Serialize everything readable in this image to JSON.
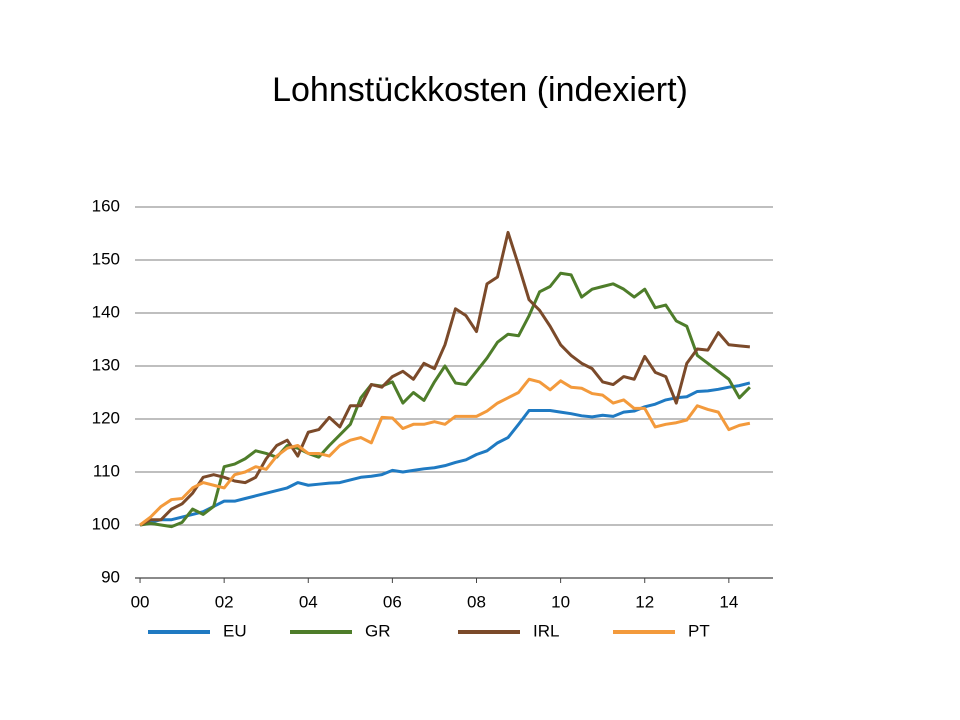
{
  "chart_data": {
    "type": "line",
    "title": "Lohnstückkosten (indexiert)",
    "x": [
      2000,
      2000.25,
      2000.5,
      2000.75,
      2001,
      2001.25,
      2001.5,
      2001.75,
      2002,
      2002.25,
      2002.5,
      2002.75,
      2003,
      2003.25,
      2003.5,
      2003.75,
      2004,
      2004.25,
      2004.5,
      2004.75,
      2005,
      2005.25,
      2005.5,
      2005.75,
      2006,
      2006.25,
      2006.5,
      2006.75,
      2007,
      2007.25,
      2007.5,
      2007.75,
      2008,
      2008.25,
      2008.5,
      2008.75,
      2009,
      2009.25,
      2009.5,
      2009.75,
      2010,
      2010.25,
      2010.5,
      2010.75,
      2011,
      2011.25,
      2011.5,
      2011.75,
      2012,
      2012.25,
      2012.5,
      2012.75,
      2013,
      2013.25,
      2013.5,
      2013.75,
      2014,
      2014.25,
      2014.5
    ],
    "series": [
      {
        "name": "EU",
        "color": "#1f7ac2",
        "values": [
          100,
          100.5,
          101,
          101,
          101.5,
          102,
          102.5,
          103.5,
          104.5,
          104.5,
          105,
          105.5,
          106,
          106.5,
          107,
          108,
          107.5,
          107.7,
          107.9,
          108,
          108.5,
          109,
          109.2,
          109.5,
          110.3,
          110,
          110.3,
          110.6,
          110.8,
          111.2,
          111.8,
          112.3,
          113.3,
          114,
          115.5,
          116.5,
          119,
          121.6,
          121.6,
          121.6,
          121.3,
          121,
          120.6,
          120.4,
          120.7,
          120.5,
          121.3,
          121.5,
          122.3,
          122.8,
          123.6,
          124,
          124.2,
          125.2,
          125.3,
          125.6,
          126,
          126.3,
          126.8
        ]
      },
      {
        "name": "GR",
        "color": "#4e7d2a",
        "values": [
          100,
          100.3,
          100,
          99.7,
          100.5,
          103,
          102,
          103.5,
          111,
          111.5,
          112.5,
          114,
          113.5,
          112.8,
          115,
          114.5,
          113.5,
          112.8,
          115,
          117,
          119,
          124,
          126.5,
          126.2,
          127,
          123,
          125,
          123.5,
          127,
          130,
          126.8,
          126.5,
          129,
          131.5,
          134.5,
          136,
          135.7,
          139.5,
          144,
          145,
          147.5,
          147.2,
          143,
          144.5,
          145,
          145.5,
          144.5,
          143,
          144.5,
          141,
          141.5,
          138.5,
          137.5,
          132,
          130.5,
          129,
          127.5,
          124,
          126
        ]
      },
      {
        "name": "IRL",
        "color": "#7b4a2a",
        "values": [
          100,
          101,
          101,
          103,
          104,
          106,
          109,
          109.5,
          109,
          108.3,
          108,
          109,
          112.5,
          115,
          116,
          113,
          117.5,
          118,
          120.3,
          118.5,
          122.5,
          122.5,
          126.5,
          126,
          128,
          129,
          127.5,
          130.5,
          129.5,
          134,
          140.8,
          139.5,
          136.5,
          145.5,
          146.8,
          155.2,
          149,
          142.5,
          140.5,
          137.5,
          134,
          132,
          130.5,
          129.5,
          127,
          126.5,
          128,
          127.5,
          131.8,
          128.8,
          128,
          123,
          130.5,
          133.2,
          133,
          136.3,
          134,
          133.8,
          133.6
        ]
      },
      {
        "name": "PT",
        "color": "#f39a3c",
        "values": [
          100,
          101.5,
          103.5,
          104.8,
          105,
          107,
          108,
          107.5,
          107,
          109.5,
          110,
          111,
          110.5,
          113,
          114.5,
          115,
          113.5,
          113.5,
          113,
          115,
          116,
          116.5,
          115.5,
          120.3,
          120.2,
          118.2,
          119,
          119,
          119.5,
          119,
          120.5,
          120.5,
          120.5,
          121.5,
          123,
          124,
          125,
          127.5,
          127,
          125.5,
          127.2,
          126,
          125.8,
          124.8,
          124.5,
          123,
          123.6,
          122,
          122,
          118.5,
          119,
          119.3,
          119.8,
          122.5,
          121.8,
          121.3,
          118,
          118.8,
          119.2
        ]
      }
    ],
    "xlim": [
      1999.88,
      2015.05
    ],
    "xticks": [
      {
        "value": 2000,
        "label": "00"
      },
      {
        "value": 2002,
        "label": "02"
      },
      {
        "value": 2004,
        "label": "04"
      },
      {
        "value": 2006,
        "label": "06"
      },
      {
        "value": 2008,
        "label": "08"
      },
      {
        "value": 2010,
        "label": "10"
      },
      {
        "value": 2012,
        "label": "12"
      },
      {
        "value": 2014,
        "label": "14"
      }
    ],
    "ylim": [
      90,
      160
    ],
    "yticks": [
      90,
      100,
      110,
      120,
      130,
      140,
      150,
      160
    ],
    "grid": true,
    "legend": "bottom"
  }
}
